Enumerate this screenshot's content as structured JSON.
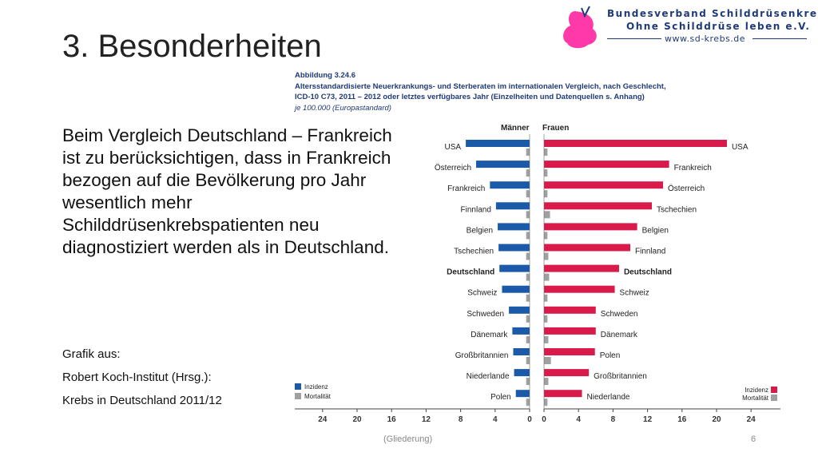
{
  "slide": {
    "title": "3. Besonderheiten",
    "body": "Beim Vergleich Deutschland – Frankreich ist zu berücksichtigen, dass in Frankreich bezogen auf die Bevölkerung pro Jahr wesentlich mehr Schilddrüsenkrebspatienten neu diagnostiziert werden als in Deutschland.",
    "source_line1": "Grafik aus:",
    "source_line2": "Robert Koch-Institut (Hrsg.):",
    "source_line3": "Krebs in Deutschland 2011/12",
    "footer_nav": "(Gliederung)",
    "page_number": "6"
  },
  "logo": {
    "line1": "Bundesverband Schilddrüsenkrebs",
    "line2": "Ohne Schilddrüse leben e.V.",
    "line3": "www.sd-krebs.de",
    "color": "#ff3aa8"
  },
  "colors": {
    "incidence_male": "#1a5aa8",
    "incidence_female": "#d81b4a",
    "mortality": "#a0a0a0",
    "caption": "#1f3a78"
  },
  "chart_data": {
    "type": "bar",
    "caption_line1": "Abbildung 3.24.6",
    "caption_line2": "Altersstandardisierte Neuerkrankungs- und Sterberaten im internationalen Vergleich, nach Geschlecht,",
    "caption_line3": "ICD-10 C73, 2011 – 2012 oder letztes verfügbares Jahr (Einzelheiten und Datenquellen s. Anhang)",
    "caption_line4": "je 100.000 (Europastandard)",
    "panel_left": "Männer",
    "panel_right": "Frauen",
    "x_ticks_left": [
      "24",
      "20",
      "16",
      "12",
      "8",
      "4",
      "0"
    ],
    "x_ticks_right": [
      "0",
      "4",
      "8",
      "12",
      "16",
      "20",
      "24"
    ],
    "xlim": [
      0,
      24
    ],
    "legend_incidence": "Inzidenz",
    "legend_mortality": "Mortalität",
    "men": {
      "categories": [
        "USA",
        "Österreich",
        "Frankreich",
        "Finnland",
        "Belgien",
        "Tschechien",
        "Deutschland",
        "Schweiz",
        "Schweden",
        "Dänemark",
        "Großbritannien",
        "Niederlande",
        "Polen"
      ],
      "incidence": [
        7.4,
        6.2,
        4.6,
        3.9,
        3.7,
        3.6,
        3.5,
        3.2,
        2.4,
        2.0,
        1.9,
        1.8,
        1.6
      ],
      "mortality": [
        0.4,
        0.4,
        0.4,
        0.4,
        0.4,
        0.4,
        0.4,
        0.4,
        0.4,
        0.4,
        0.4,
        0.4,
        0.4
      ]
    },
    "women": {
      "categories": [
        "USA",
        "Frankreich",
        "Österreich",
        "Tschechien",
        "Belgien",
        "Finnland",
        "Deutschland",
        "Schweiz",
        "Schweden",
        "Dänemark",
        "Polen",
        "Großbritannien",
        "Niederlande"
      ],
      "incidence": [
        21.2,
        14.5,
        13.8,
        12.5,
        10.8,
        10.0,
        8.7,
        8.2,
        6.0,
        6.0,
        5.9,
        5.2,
        4.4
      ],
      "mortality": [
        0.4,
        0.4,
        0.4,
        0.7,
        0.4,
        0.5,
        0.6,
        0.4,
        0.4,
        0.5,
        0.8,
        0.5,
        0.4
      ]
    },
    "highlight": "Deutschland"
  }
}
